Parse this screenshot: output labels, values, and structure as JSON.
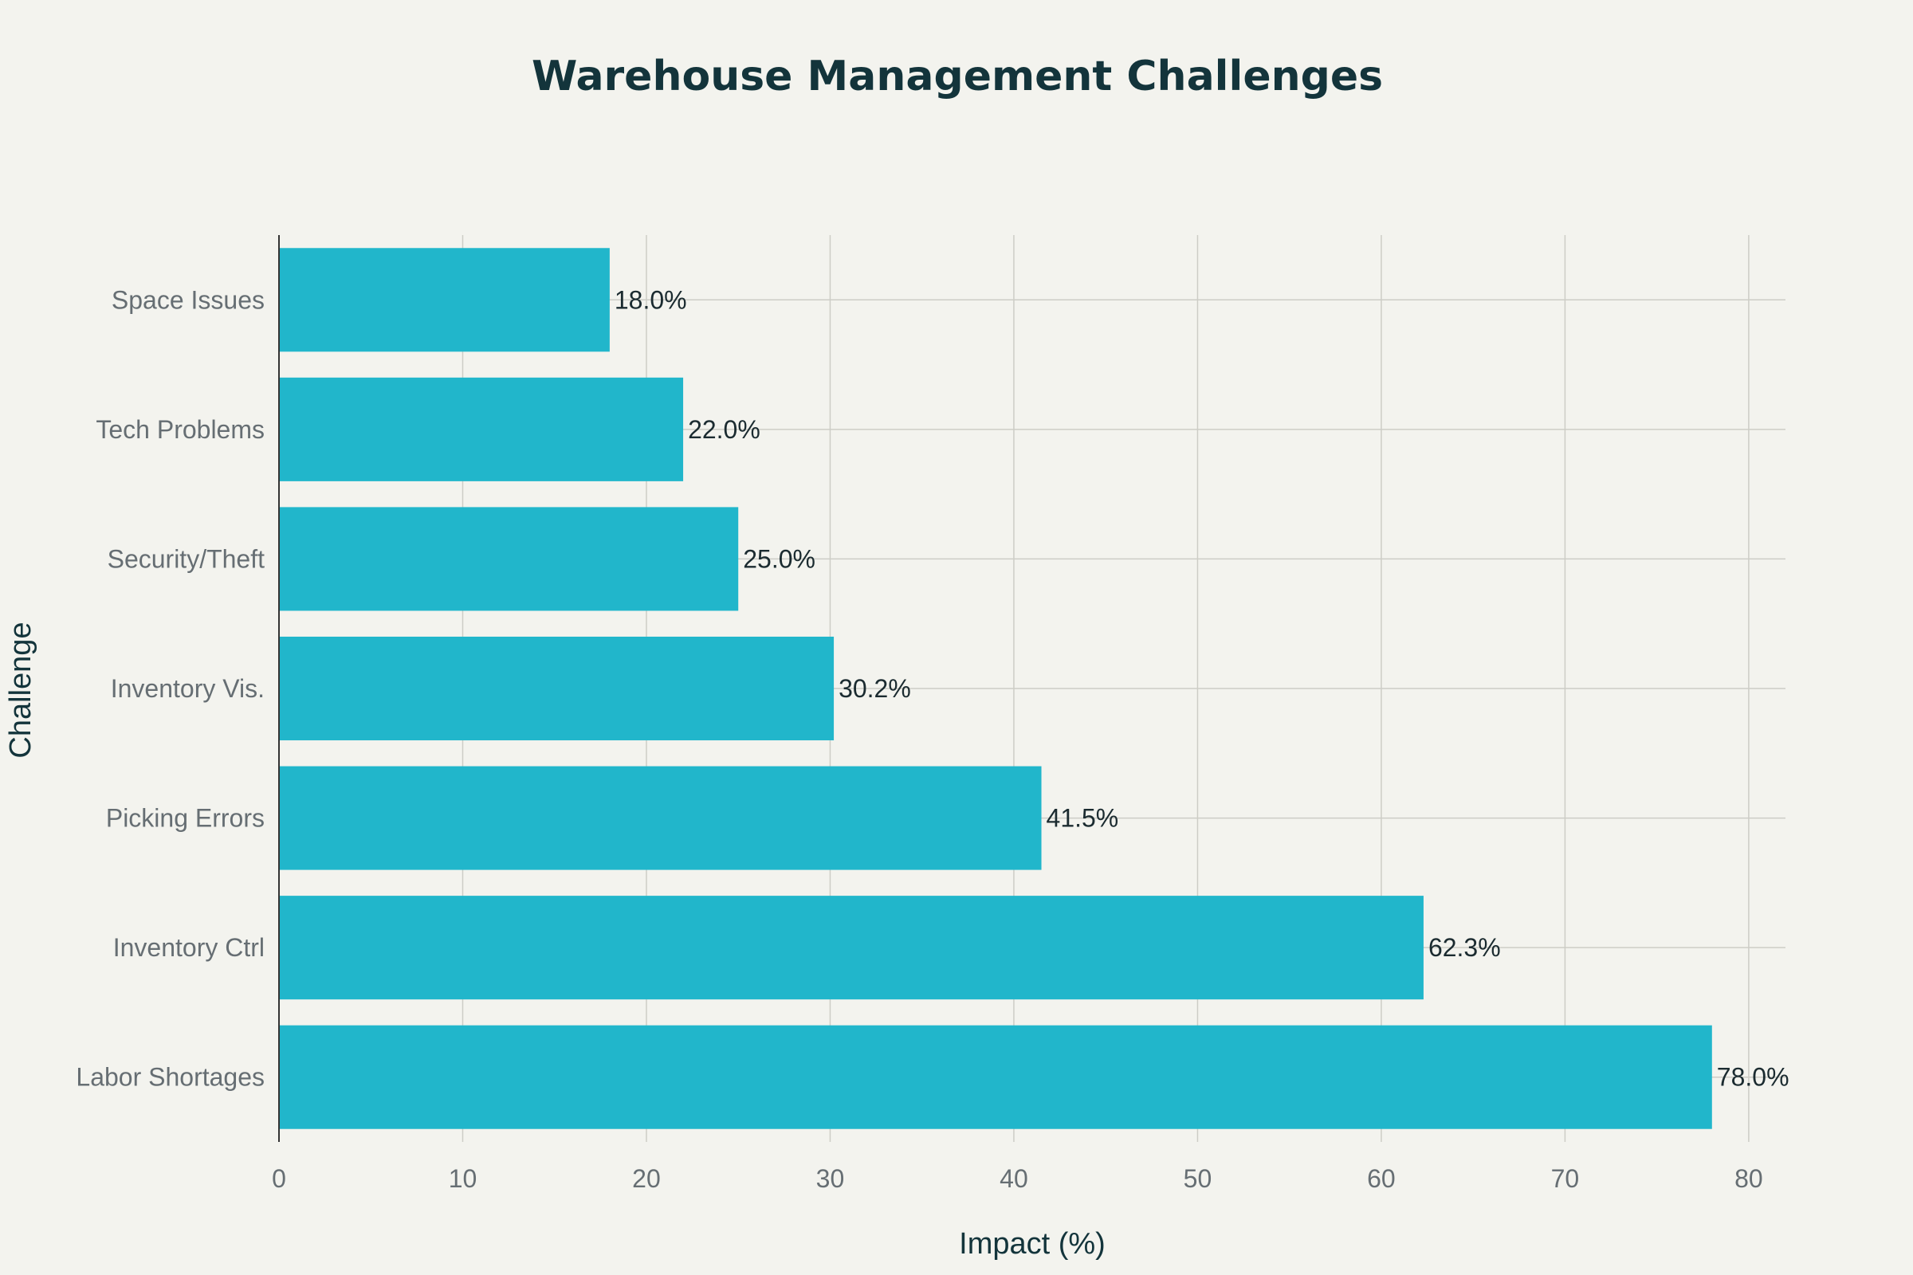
{
  "chart_data": {
    "type": "bar",
    "orientation": "horizontal",
    "title": "Warehouse Management Challenges",
    "xlabel": "Impact (%)",
    "ylabel": "Challenge",
    "categories": [
      "Labor Shortages",
      "Inventory Ctrl",
      "Picking Errors",
      "Inventory Vis.",
      "Security/Theft",
      "Tech Problems",
      "Space Issues"
    ],
    "values": [
      78.0,
      62.3,
      41.5,
      30.2,
      25.0,
      22.0,
      18.0
    ],
    "data_labels": [
      "78.0%",
      "62.3%",
      "41.5%",
      "30.2%",
      "25.0%",
      "22.0%",
      "18.0%"
    ],
    "xlim": [
      0,
      82
    ],
    "xticks": [
      0,
      10,
      20,
      30,
      40,
      50,
      60,
      70,
      80
    ],
    "grid": true,
    "bar_color": "#21b6cb"
  }
}
